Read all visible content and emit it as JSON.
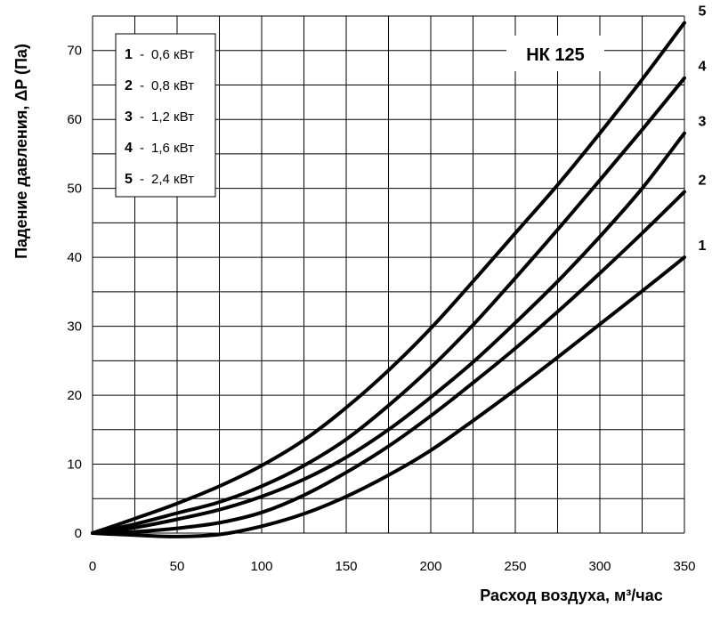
{
  "chart_data": {
    "type": "line",
    "label": "НК 125",
    "xlabel": "Расход воздуха, м³/час",
    "ylabel": "Падение давления, ΔP (Па)",
    "xlim": [
      0,
      350
    ],
    "ylim": [
      0,
      75
    ],
    "x_ticks": [
      0,
      50,
      100,
      150,
      200,
      250,
      300,
      350
    ],
    "y_ticks": [
      0,
      10,
      20,
      30,
      40,
      50,
      60,
      70
    ],
    "grid": true,
    "legend_position": "top-left",
    "series": [
      {
        "name": "1",
        "legend_value": "0,6  кВт",
        "x": [
          0,
          25,
          50,
          75,
          100,
          125,
          150,
          175,
          200,
          225,
          250,
          275,
          300,
          325,
          350
        ],
        "y": [
          0,
          -0.3,
          -0.5,
          -0.2,
          1,
          2.8,
          5.3,
          8.4,
          12,
          16.3,
          20.8,
          25.5,
          30.3,
          35.1,
          40
        ]
      },
      {
        "name": "2",
        "legend_value": "0,8  кВт",
        "x": [
          0,
          25,
          50,
          75,
          100,
          125,
          150,
          175,
          200,
          225,
          250,
          275,
          300,
          325,
          350
        ],
        "y": [
          0,
          0.2,
          0.7,
          1.5,
          3,
          5.5,
          8.8,
          12.6,
          17,
          21.8,
          26.8,
          32.1,
          37.7,
          43.5,
          49.5
        ]
      },
      {
        "name": "3",
        "legend_value": "1,2  кВт",
        "x": [
          0,
          25,
          50,
          75,
          100,
          125,
          150,
          175,
          200,
          225,
          250,
          275,
          300,
          325,
          350
        ],
        "y": [
          0,
          0.8,
          2,
          3.4,
          5.3,
          7.8,
          11,
          15,
          19.7,
          24.8,
          30.5,
          36.5,
          43,
          50,
          58
        ]
      },
      {
        "name": "4",
        "legend_value": "1,6  кВт",
        "x": [
          0,
          25,
          50,
          75,
          100,
          125,
          150,
          175,
          200,
          225,
          250,
          275,
          300,
          325,
          350
        ],
        "y": [
          0,
          1.3,
          2.9,
          4.5,
          6.8,
          9.8,
          13.6,
          18.5,
          24,
          30.2,
          37,
          44,
          51.2,
          58.5,
          66
        ]
      },
      {
        "name": "5",
        "legend_value": "2,4  кВт",
        "x": [
          0,
          25,
          50,
          75,
          100,
          125,
          150,
          175,
          200,
          225,
          250,
          275,
          300,
          325,
          350
        ],
        "y": [
          0,
          2.1,
          4.3,
          6.8,
          9.8,
          13.5,
          18.2,
          23.6,
          29.7,
          36.5,
          43.5,
          50.5,
          58,
          65.8,
          74
        ]
      }
    ]
  }
}
